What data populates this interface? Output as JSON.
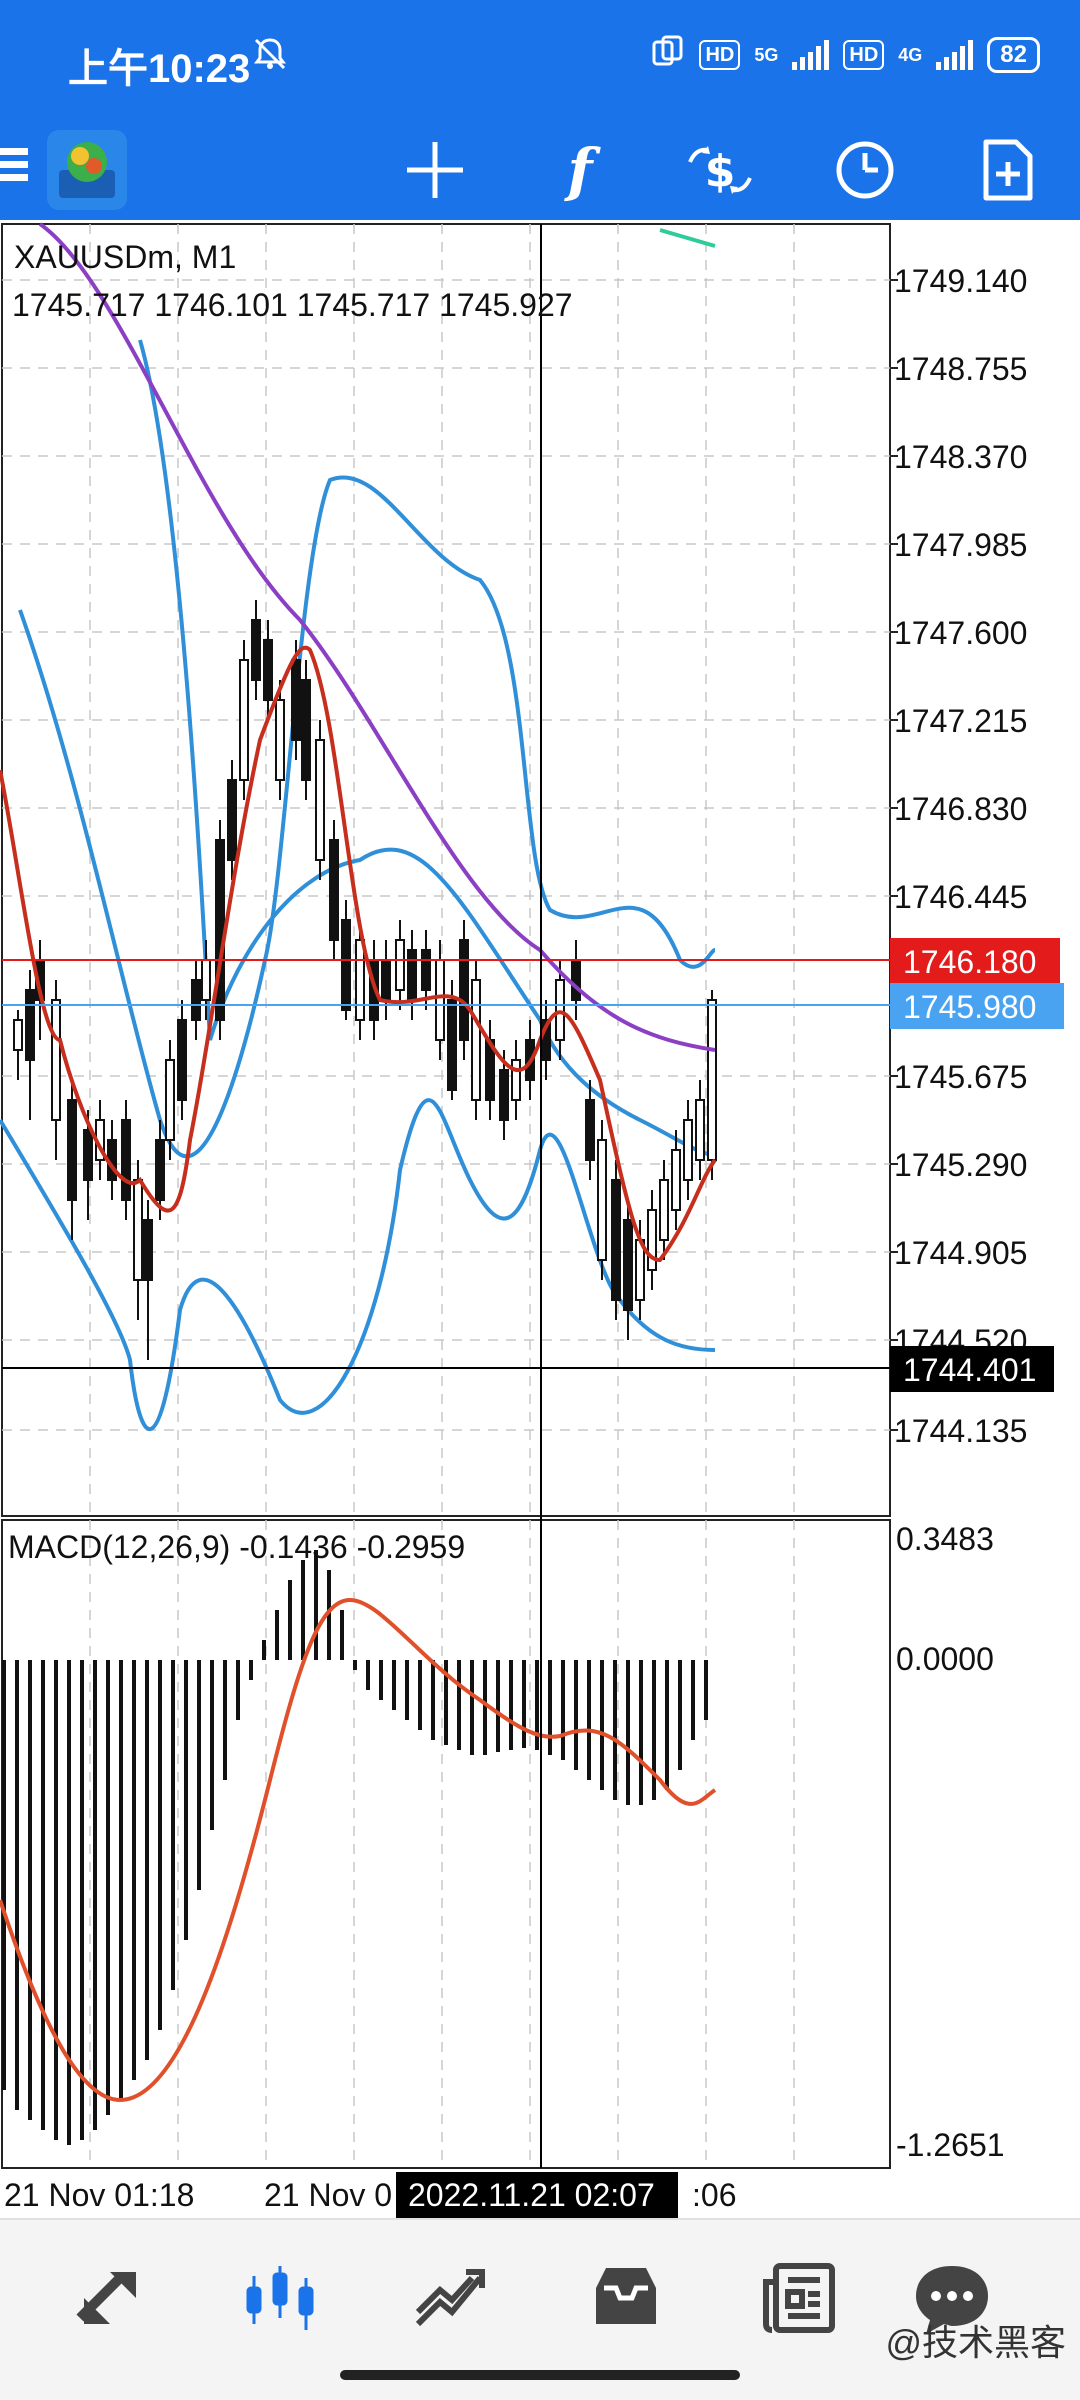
{
  "status_bar": {
    "time": "上午10:23",
    "mute_icon": "bell-off-icon",
    "network_1": "5G",
    "network_2": "4G",
    "hd_label": "HD",
    "battery": "82"
  },
  "toolbar": {
    "icons": [
      "menu-icon",
      "metatrader-logo",
      "crosshair-icon",
      "indicators-icon",
      "trade-icon",
      "period-icon",
      "new-order-icon"
    ],
    "indicator_glyph": "f",
    "accent_color": "#1a73e8"
  },
  "chart": {
    "symbol_line": "XAUUSDm, M1",
    "ohlc_line": "1745.717 1746.101 1745.717 1745.927",
    "price_ticks": [
      "1749.140",
      "1748.755",
      "1748.370",
      "1747.985",
      "1747.600",
      "1747.215",
      "1746.830",
      "1746.445",
      "1745.675",
      "1745.290",
      "1744.905",
      "1744.520",
      "1744.135"
    ],
    "ask_price": "1746.180",
    "bid_price": "1745.980",
    "crosshair_price": "1744.401",
    "macd_label": "MACD(12,26,9) -0.1436 -0.2959",
    "macd_ticks": [
      "0.3483",
      "0.0000",
      "-1.2651"
    ],
    "time_labels": [
      "21 Nov 01:18",
      "21 Nov 0",
      "2022.11.21 02:07",
      ":06"
    ],
    "colors": {
      "ask": "#e31b1b",
      "bid": "#4aa3f0",
      "bands": "#2f8fd8",
      "ma_purple": "#8b3fc4",
      "ma_red": "#c62f1e",
      "macd_signal": "#e0502a",
      "band_green": "#2ecc9a"
    }
  },
  "bottom_nav": {
    "items": [
      "quotes-icon",
      "chart-icon",
      "trade-icon",
      "history-icon",
      "news-icon",
      "messages-icon"
    ],
    "active": "chart-icon"
  },
  "watermark": "@技术黑客"
}
